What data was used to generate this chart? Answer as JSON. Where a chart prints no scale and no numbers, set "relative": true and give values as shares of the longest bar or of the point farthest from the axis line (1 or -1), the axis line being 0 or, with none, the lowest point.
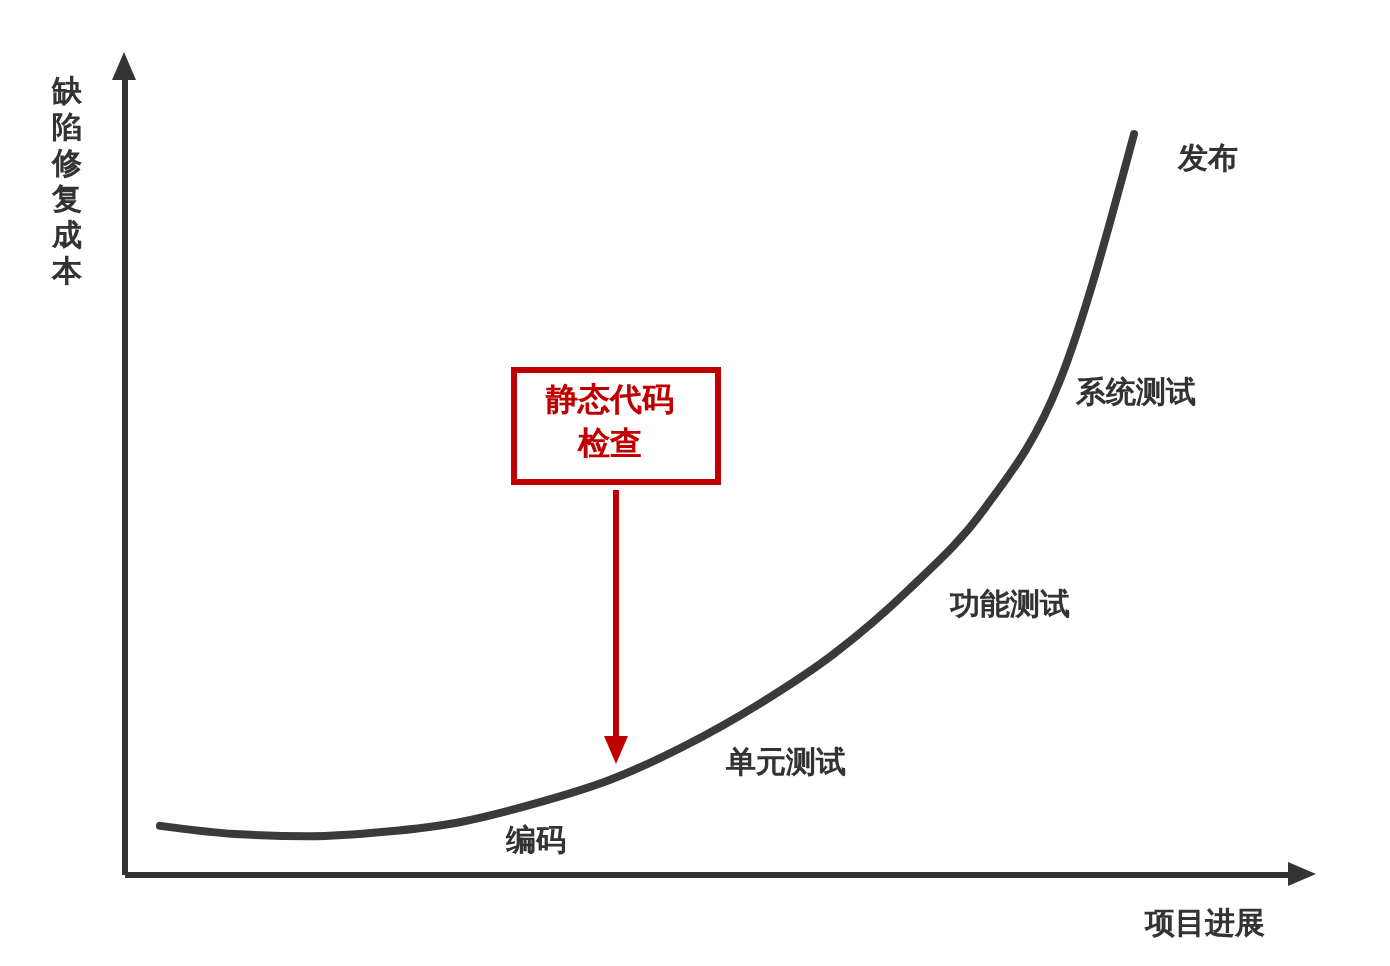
{
  "chart_data": {
    "type": "line",
    "relative": true,
    "xlabel": "项目进展",
    "ylabel": "缺陷修复成本",
    "categories": [
      null,
      null,
      null,
      null,
      null,
      null,
      null,
      null,
      null,
      null,
      null,
      null,
      null,
      null
    ],
    "series": [
      {
        "color": "#3a3a3a",
        "values": [
          0.065,
          0.054,
          0.051,
          0.057,
          0.07,
          0.095,
          0.127,
          0.173,
          0.23,
          0.298,
          0.385,
          0.493,
          0.664,
          1
        ]
      }
    ],
    "annotations": [
      "静态代码检查",
      "编码",
      "单元测试",
      "功能测试",
      "系统测试",
      "发布"
    ]
  }
}
